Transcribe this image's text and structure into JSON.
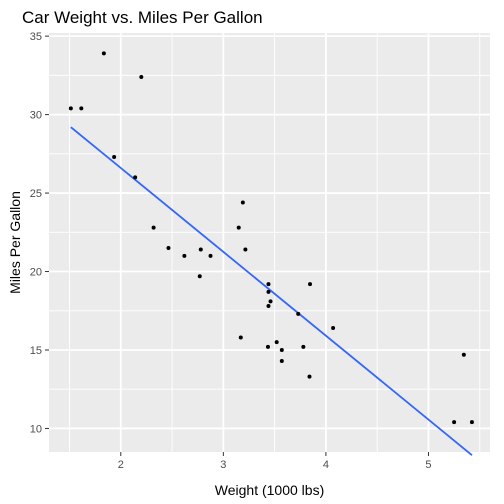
{
  "chart_data": {
    "type": "scatter",
    "title": "Car Weight vs. Miles Per Gallon",
    "xlabel": "Weight (1000 lbs)",
    "ylabel": "Miles Per Gallon",
    "xlim": [
      1.3,
      5.6
    ],
    "ylim": [
      8.5,
      35.2
    ],
    "x_ticks": [
      2,
      3,
      4,
      5
    ],
    "y_ticks": [
      10,
      15,
      20,
      25,
      30,
      35
    ],
    "x_tick_labels": [
      "2",
      "3",
      "4",
      "5"
    ],
    "y_tick_labels": [
      "10",
      "15",
      "20",
      "25",
      "30",
      "35"
    ],
    "grid": true,
    "points": [
      {
        "x": 1.513,
        "y": 30.4
      },
      {
        "x": 1.615,
        "y": 30.4
      },
      {
        "x": 1.835,
        "y": 33.9
      },
      {
        "x": 1.935,
        "y": 27.3
      },
      {
        "x": 2.14,
        "y": 26.0
      },
      {
        "x": 2.2,
        "y": 32.4
      },
      {
        "x": 2.32,
        "y": 22.8
      },
      {
        "x": 2.465,
        "y": 21.5
      },
      {
        "x": 2.62,
        "y": 21.0
      },
      {
        "x": 2.77,
        "y": 19.7
      },
      {
        "x": 2.78,
        "y": 21.4
      },
      {
        "x": 2.875,
        "y": 21.0
      },
      {
        "x": 3.15,
        "y": 22.8
      },
      {
        "x": 3.17,
        "y": 15.8
      },
      {
        "x": 3.19,
        "y": 24.4
      },
      {
        "x": 3.215,
        "y": 21.4
      },
      {
        "x": 3.435,
        "y": 15.2
      },
      {
        "x": 3.44,
        "y": 18.7
      },
      {
        "x": 3.44,
        "y": 19.2
      },
      {
        "x": 3.44,
        "y": 17.8
      },
      {
        "x": 3.46,
        "y": 18.1
      },
      {
        "x": 3.52,
        "y": 15.5
      },
      {
        "x": 3.57,
        "y": 14.3
      },
      {
        "x": 3.57,
        "y": 15.0
      },
      {
        "x": 3.73,
        "y": 17.3
      },
      {
        "x": 3.78,
        "y": 15.2
      },
      {
        "x": 3.84,
        "y": 13.3
      },
      {
        "x": 3.845,
        "y": 19.2
      },
      {
        "x": 4.07,
        "y": 16.4
      },
      {
        "x": 5.25,
        "y": 10.4
      },
      {
        "x": 5.345,
        "y": 14.7
      },
      {
        "x": 5.424,
        "y": 10.4
      }
    ],
    "trendline": {
      "x": [
        1.513,
        5.424
      ],
      "y": [
        29.2,
        8.3
      ],
      "color": "#3366ff"
    },
    "point_color": "#000000",
    "panel_background": "#ebebeb",
    "grid_color": "#ffffff"
  }
}
